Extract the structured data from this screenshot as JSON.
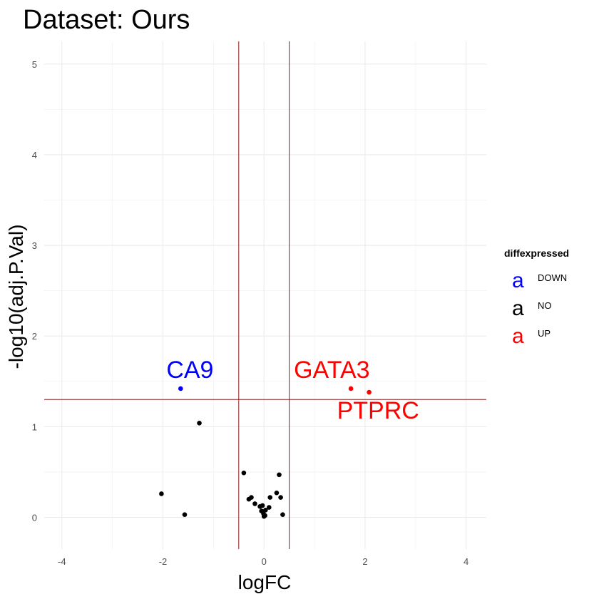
{
  "chart_data": {
    "type": "scatter",
    "title": "Dataset: Ours",
    "xlabel": "logFC",
    "ylabel": "-log10(adj.P.Val)",
    "xlim": [
      -4.35,
      4.4
    ],
    "ylim": [
      -0.35,
      5.25
    ],
    "x_ticks": [
      -4,
      -2,
      0,
      2,
      4
    ],
    "y_ticks": [
      0,
      1,
      2,
      3,
      4,
      5
    ],
    "grid": true,
    "reference_lines": {
      "vertical": [
        -0.5,
        0.5
      ],
      "horizontal": [
        1.3
      ],
      "color": "#8b1a1a"
    },
    "legend": {
      "title": "diffexpressed",
      "placement": "right",
      "entries": [
        {
          "key": "a",
          "label": "DOWN",
          "color": "#0000ff"
        },
        {
          "key": "a",
          "label": "NO",
          "color": "#000000"
        },
        {
          "key": "a",
          "label": "UP",
          "color": "#ff0000"
        }
      ]
    },
    "series": [
      {
        "name": "DOWN",
        "color": "#0000ff",
        "points": [
          {
            "x": -1.65,
            "y": 1.42,
            "label": "CA9"
          }
        ]
      },
      {
        "name": "NO",
        "color": "#000000",
        "points": [
          {
            "x": -1.28,
            "y": 1.04
          },
          {
            "x": -2.03,
            "y": 0.26
          },
          {
            "x": -1.57,
            "y": 0.03
          },
          {
            "x": -0.4,
            "y": 0.49
          },
          {
            "x": -0.3,
            "y": 0.2
          },
          {
            "x": -0.25,
            "y": 0.22
          },
          {
            "x": -0.18,
            "y": 0.15
          },
          {
            "x": -0.08,
            "y": 0.12
          },
          {
            "x": -0.05,
            "y": 0.07
          },
          {
            "x": -0.03,
            "y": 0.13
          },
          {
            "x": -0.01,
            "y": 0.04
          },
          {
            "x": 0.0,
            "y": 0.01
          },
          {
            "x": 0.02,
            "y": 0.02
          },
          {
            "x": 0.03,
            "y": 0.08
          },
          {
            "x": 0.1,
            "y": 0.11
          },
          {
            "x": 0.12,
            "y": 0.22
          },
          {
            "x": 0.25,
            "y": 0.27
          },
          {
            "x": 0.3,
            "y": 0.47
          },
          {
            "x": 0.33,
            "y": 0.22
          },
          {
            "x": 0.37,
            "y": 0.03
          }
        ]
      },
      {
        "name": "UP",
        "color": "#ff0000",
        "points": [
          {
            "x": 1.72,
            "y": 1.42,
            "label": "GATA3"
          },
          {
            "x": 2.08,
            "y": 1.38,
            "label": "PTPRC"
          }
        ]
      }
    ]
  }
}
